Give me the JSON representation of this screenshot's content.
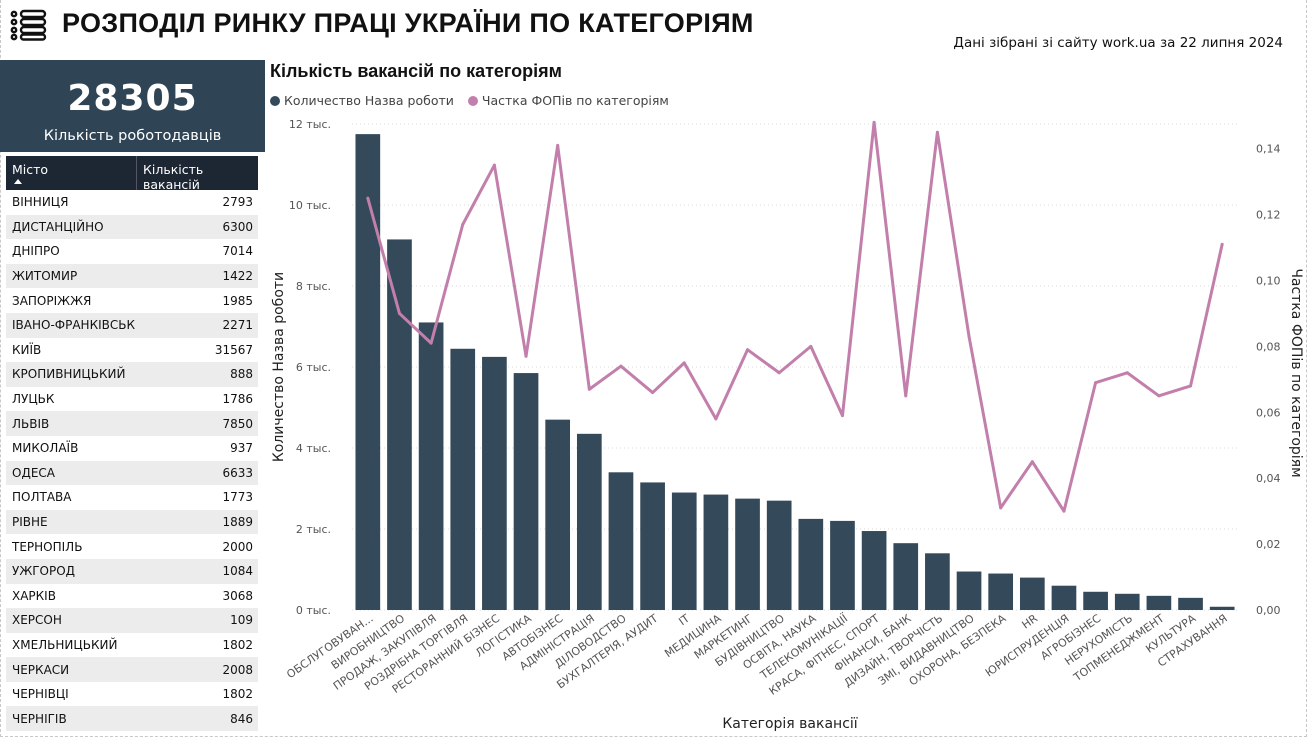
{
  "header": {
    "title": "РОЗПОДІЛ РИНКУ ПРАЦІ УКРАЇНИ ПО КАТЕГОРІЯМ",
    "subtitle": "Дані зібрані зі сайту work.ua за 22 липня 2024",
    "menu_icon": "hamburger-list-icon"
  },
  "kpi": {
    "value": "28305",
    "label": "Кількість роботодавців"
  },
  "table": {
    "columns": [
      "Місто",
      "Кількість вакансій"
    ],
    "sort": "ascending by Місто",
    "rows": [
      {
        "city": "ВІННИЦЯ",
        "count": "2793"
      },
      {
        "city": "ДИСТАНЦІЙНО",
        "count": "6300"
      },
      {
        "city": "ДНІПРО",
        "count": "7014"
      },
      {
        "city": "ЖИТОМИР",
        "count": "1422"
      },
      {
        "city": "ЗАПОРІЖЖЯ",
        "count": "1985"
      },
      {
        "city": "ІВАНО-ФРАНКІВСЬК",
        "count": "2271"
      },
      {
        "city": "КИЇВ",
        "count": "31567"
      },
      {
        "city": "КРОПИВНИЦЬКИЙ",
        "count": "888"
      },
      {
        "city": "ЛУЦЬК",
        "count": "1786"
      },
      {
        "city": "ЛЬВІВ",
        "count": "7850"
      },
      {
        "city": "МИКОЛАЇВ",
        "count": "937"
      },
      {
        "city": "ОДЕСА",
        "count": "6633"
      },
      {
        "city": "ПОЛТАВА",
        "count": "1773"
      },
      {
        "city": "РІВНЕ",
        "count": "1889"
      },
      {
        "city": "ТЕРНОПІЛЬ",
        "count": "2000"
      },
      {
        "city": "УЖГОРОД",
        "count": "1084"
      },
      {
        "city": "ХАРКІВ",
        "count": "3068"
      },
      {
        "city": "ХЕРСОН",
        "count": "109"
      },
      {
        "city": "ХМЕЛЬНИЦЬКИЙ",
        "count": "1802"
      },
      {
        "city": "ЧЕРКАСИ",
        "count": "2008"
      },
      {
        "city": "ЧЕРНІВЦІ",
        "count": "1802"
      },
      {
        "city": "ЧЕРНІГІВ",
        "count": "846"
      }
    ]
  },
  "chart": {
    "title": "Кількість вакансій по категоріям",
    "legend": [
      {
        "name": "Количество Назва роботи",
        "color": "#34495a"
      },
      {
        "name": "Частка ФОПів по категоріям",
        "color": "#c27fab"
      }
    ]
  },
  "chart_data": {
    "type": "bar",
    "title": "Кількість вакансій по категоріям",
    "xlabel": "Категорія вакансії",
    "ylabel": "Количество Назва роботи",
    "y2label": "Частка ФОПів по категоріям",
    "ylim": [
      0,
      12000
    ],
    "y2lim": [
      0,
      0.14
    ],
    "yticks": [
      "0 тыс.",
      "2 тыс.",
      "4 тыс.",
      "6 тыс.",
      "8 тыс.",
      "10 тыс.",
      "12 тыс."
    ],
    "y2ticks": [
      "0,00",
      "0,02",
      "0,04",
      "0,06",
      "0,08",
      "0,10",
      "0,12",
      "0,14"
    ],
    "grid": true,
    "legend_position": "top-left",
    "categories": [
      "ОБСЛУГОВУВАН...",
      "ВИРОБНИЦТВО",
      "ПРОДАЖ, ЗАКУПІВЛЯ",
      "РОЗДРІБНА ТОРГІВЛЯ",
      "РЕСТОРАННИЙ БІЗНЕС",
      "ЛОГІСТИКА",
      "АВТОБІЗНЕС",
      "АДМІНІСТРАЦІЯ",
      "ДІЛОВОДСТВО",
      "БУХГАЛТЕРІЯ, АУДИТ",
      "IT",
      "МЕДИЦИНА",
      "МАРКЕТИНГ",
      "БУДІВНИЦТВО",
      "ОСВІТА, НАУКА",
      "ТЕЛЕКОМУНІКАЦІЇ",
      "КРАСА, ФІТНЕС, СПОРТ",
      "ФІНАНСИ, БАНК",
      "ДИЗАЙН, ТВОРЧІСТЬ",
      "ЗМІ, ВИДАВНИЦТВО",
      "ОХОРОНА, БЕЗПЕКА",
      "HR",
      "ЮРИСПРУДЕНЦІЯ",
      "АГРОБІЗНЕС",
      "НЕРУХОМІСТЬ",
      "ТОПМЕНЕДЖМЕНТ",
      "КУЛЬТУРА",
      "СТРАХУВАННЯ"
    ],
    "series": [
      {
        "name": "Количество Назва роботи",
        "axis": "left",
        "type": "bar",
        "color": "#34495a",
        "values": [
          11750,
          9150,
          7100,
          6450,
          6250,
          5850,
          4700,
          4350,
          3400,
          3150,
          2900,
          2850,
          2750,
          2700,
          2250,
          2200,
          1950,
          1650,
          1400,
          950,
          900,
          800,
          600,
          450,
          400,
          350,
          300,
          80
        ]
      },
      {
        "name": "Частка ФОПів по категоріям",
        "axis": "right",
        "type": "line",
        "color": "#c27fab",
        "values": [
          0.125,
          0.09,
          0.081,
          0.117,
          0.135,
          0.077,
          0.141,
          0.067,
          0.074,
          0.066,
          0.075,
          0.058,
          0.079,
          0.072,
          0.08,
          0.059,
          0.148,
          0.065,
          0.145,
          0.083,
          0.031,
          0.045,
          0.03,
          0.069,
          0.072,
          0.065,
          0.068,
          0.111
        ]
      }
    ]
  }
}
